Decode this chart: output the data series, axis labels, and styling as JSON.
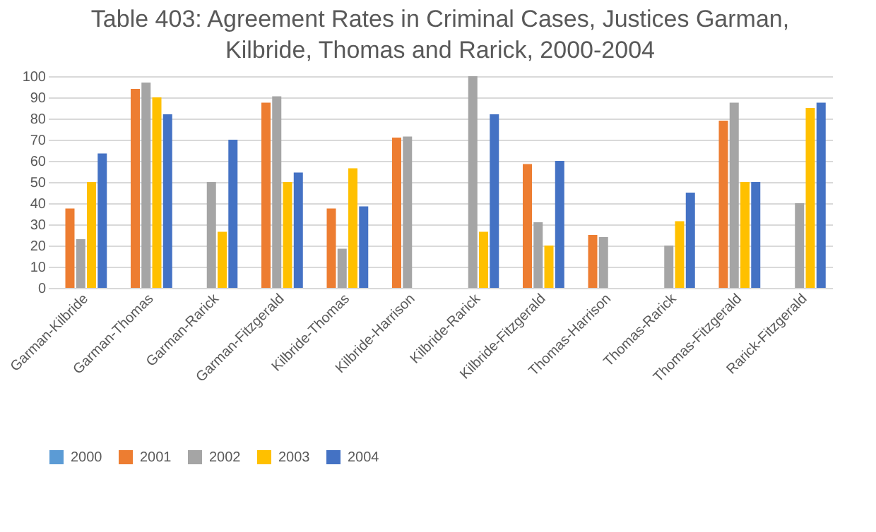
{
  "chart_data": {
    "type": "bar",
    "title": "Table 403: Agreement Rates in Criminal Cases, Justices Garman, Kilbride, Thomas and Rarick, 2000-2004",
    "categories": [
      "Garman-Kilbride",
      "Garman-Thomas",
      "Garman-Rarick",
      "Garman-Fitzgerald",
      "Kilbride-Thomas",
      "Kilbride-Harrison",
      "Kilbride-Rarick",
      "Kilbride-Fitzgerald",
      "Thomas-Harrison",
      "Thomas-Rarick",
      "Thomas-Fitzgerald",
      "Rarick-Fitzgerald"
    ],
    "series": [
      {
        "name": "2000",
        "color": "#5b9bd5",
        "values": [
          null,
          null,
          null,
          null,
          null,
          null,
          null,
          null,
          null,
          null,
          null,
          null
        ]
      },
      {
        "name": "2001",
        "color": "#ed7d31",
        "values": [
          37.5,
          94,
          null,
          87.5,
          37.5,
          71,
          null,
          58.5,
          25,
          null,
          79,
          null
        ]
      },
      {
        "name": "2002",
        "color": "#a5a5a5",
        "values": [
          23,
          97,
          50,
          90.5,
          18.5,
          71.5,
          100,
          31,
          24,
          20,
          87.5,
          40
        ]
      },
      {
        "name": "2003",
        "color": "#ffc000",
        "values": [
          50,
          90,
          26.5,
          50,
          56.5,
          null,
          26.5,
          20,
          null,
          31.5,
          50,
          85
        ]
      },
      {
        "name": "2004",
        "color": "#4472c4",
        "values": [
          63.5,
          82,
          70,
          54.5,
          38.5,
          null,
          82,
          60,
          null,
          45,
          50,
          87.5
        ]
      }
    ],
    "ylim": [
      0,
      100
    ],
    "yticks": [
      0,
      10,
      20,
      30,
      40,
      50,
      60,
      70,
      80,
      90,
      100
    ],
    "grid": "y",
    "legend": "bottom"
  }
}
